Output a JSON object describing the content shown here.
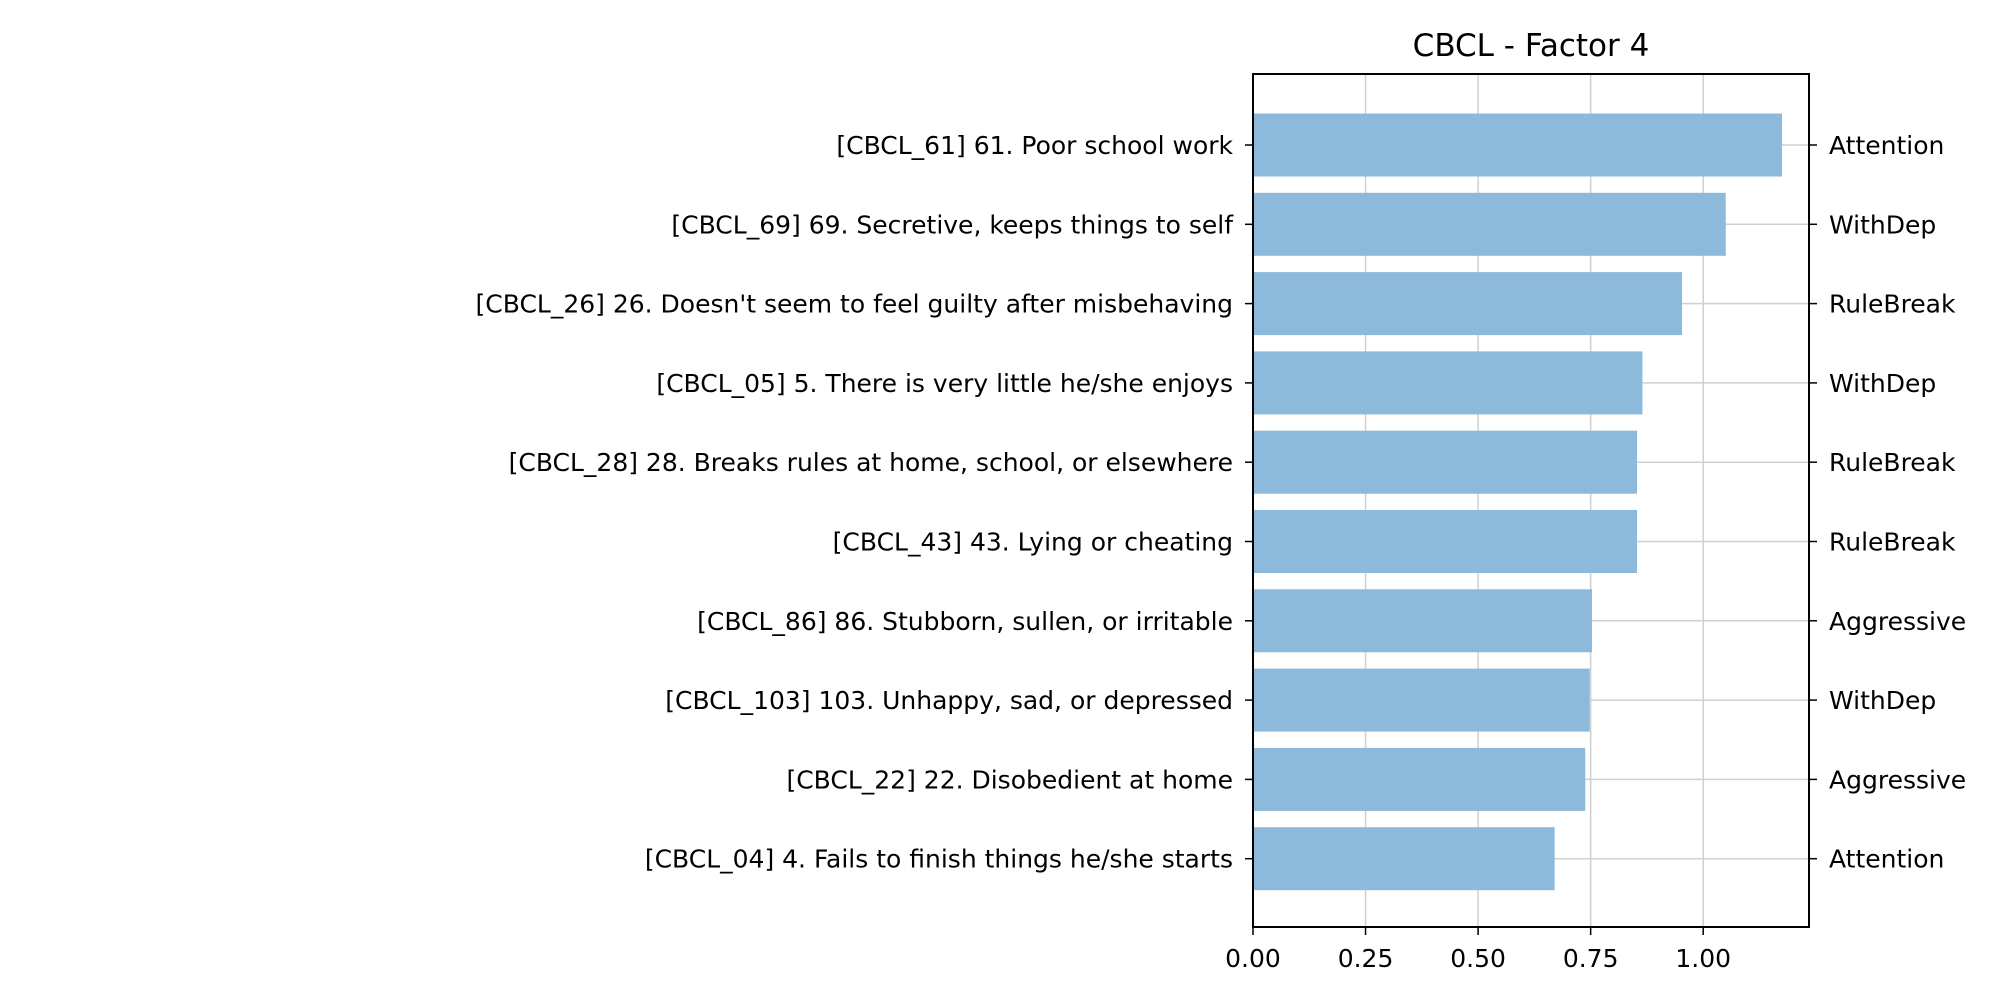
{
  "chart_data": {
    "type": "bar",
    "orientation": "horizontal",
    "title": "CBCL - Factor 4",
    "xlabel": "",
    "ylabel": "",
    "xlim": [
      0,
      1.235
    ],
    "xticks": [
      "0.00",
      "0.25",
      "0.50",
      "0.75",
      "1.00"
    ],
    "xtick_values": [
      0,
      0.25,
      0.5,
      0.75,
      1.0
    ],
    "grid": true,
    "bar_color": "#8db9da",
    "categories": [
      "[CBCL_61] 61. Poor school work",
      "[CBCL_69] 69. Secretive, keeps things to self",
      "[CBCL_26] 26. Doesn't seem to feel guilty after misbehaving",
      "[CBCL_05] 5. There is very little he/she enjoys",
      "[CBCL_28] 28. Breaks rules at home, school, or elsewhere",
      "[CBCL_43] 43. Lying or cheating",
      "[CBCL_86] 86. Stubborn, sullen, or irritable",
      "[CBCL_103] 103. Unhappy, sad, or depressed",
      "[CBCL_22] 22. Disobedient at home",
      "[CBCL_04] 4. Fails to finish things he/she starts"
    ],
    "values": [
      1.175,
      1.05,
      0.953,
      0.865,
      0.853,
      0.853,
      0.753,
      0.748,
      0.738,
      0.67
    ],
    "right_labels": [
      "Attention",
      "WithDep",
      "RuleBreak",
      "WithDep",
      "RuleBreak",
      "RuleBreak",
      "Aggressive",
      "WithDep",
      "Aggressive",
      "Attention"
    ]
  }
}
